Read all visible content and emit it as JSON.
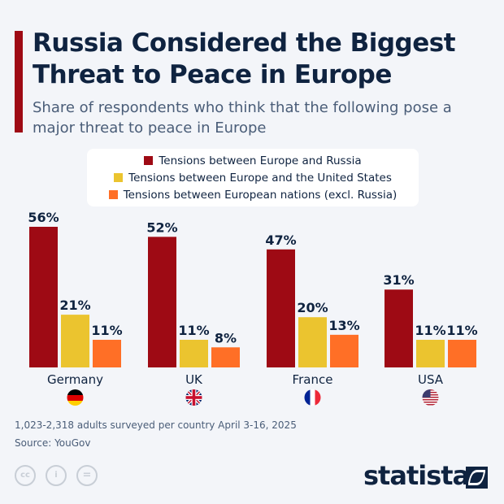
{
  "title": "Russia Considered the Biggest Threat to Peace in Europe",
  "subtitle": "Share of respondents who think that the following pose a major threat to peace in Europe",
  "chart_data": {
    "type": "bar",
    "categories": [
      "Germany",
      "UK",
      "France",
      "USA"
    ],
    "category_flags": [
      "germany-flag-icon",
      "uk-flag-icon",
      "france-flag-icon",
      "usa-flag-icon"
    ],
    "series": [
      {
        "name": "Tensions between Europe and Russia",
        "color": "#9e0a14",
        "values": [
          56,
          52,
          47,
          31
        ],
        "labels": [
          "56%",
          "52%",
          "47%",
          "31%"
        ]
      },
      {
        "name": "Tensions between Europe and the United States",
        "color": "#ebc42f",
        "values": [
          21,
          11,
          20,
          11
        ],
        "labels": [
          "21%",
          "11%",
          "20%",
          "11%"
        ]
      },
      {
        "name": "Tensions between European nations (excl. Russia)",
        "color": "#ff6f26",
        "values": [
          11,
          8,
          13,
          11
        ],
        "labels": [
          "11%",
          "8%",
          "13%",
          "11%"
        ]
      }
    ],
    "legend_position": "top-center",
    "grid": false,
    "ylim": [
      0,
      56
    ],
    "unit": "%"
  },
  "footer": {
    "note": "1,023-2,318 adults surveyed per country April 3-16, 2025",
    "source": "Source: YouGov",
    "license_icons": [
      "cc-icon",
      "attribution-icon",
      "no-derivatives-icon"
    ],
    "license_glyphs": [
      "cc",
      "i",
      "="
    ],
    "brand": "statista"
  }
}
